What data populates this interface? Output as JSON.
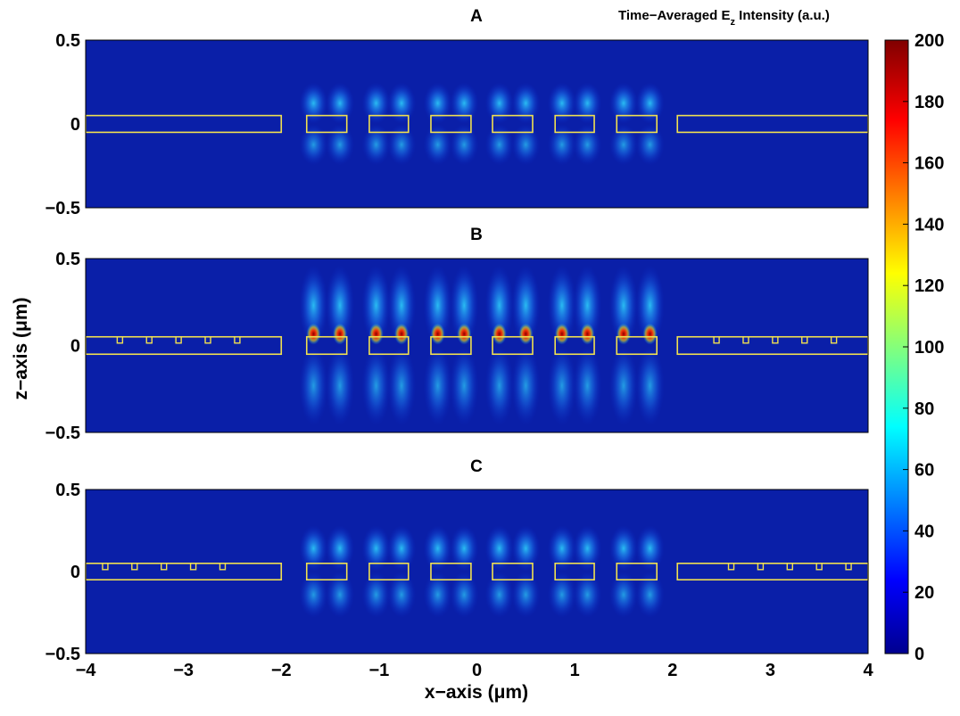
{
  "chart_data": {
    "type": "heatmap",
    "title": {
      "main": "Time−Averaged E",
      "sub": "z",
      "rest": " Intensity (a.u.)"
    },
    "xlabel": "x−axis (μm)",
    "ylabel": "z−axis (μm)",
    "xlim": [
      -4,
      4
    ],
    "ylim": [
      -0.5,
      0.5
    ],
    "x_ticks": [
      -4,
      -3,
      -2,
      -1,
      0,
      1,
      2,
      3,
      4
    ],
    "x_tick_labels": [
      "−4",
      "−3",
      "−2",
      "−1",
      "0",
      "1",
      "2",
      "3",
      "4"
    ],
    "y_tick_labels": [
      "0.5",
      "0",
      "−0.5"
    ],
    "colorbar": {
      "min": 0,
      "max": 200,
      "ticks": [
        0,
        20,
        40,
        60,
        80,
        100,
        120,
        140,
        160,
        180,
        200
      ],
      "colormap": "jet"
    },
    "panels": [
      {
        "label": "A",
        "slab_z": [
          -0.05,
          0.05
        ],
        "slabs": [
          [
            -4,
            -2
          ],
          [
            -1.74,
            -1.33
          ],
          [
            -1.1,
            -0.7
          ],
          [
            -0.47,
            -0.06
          ],
          [
            0.16,
            0.57
          ],
          [
            0.8,
            1.2
          ],
          [
            1.43,
            1.84
          ],
          [
            2.05,
            4
          ]
        ],
        "notches": [],
        "peak": 45
      },
      {
        "label": "B",
        "slab_z": [
          -0.05,
          0.05
        ],
        "slabs": [
          [
            -4,
            -2
          ],
          [
            -1.74,
            -1.33
          ],
          [
            -1.1,
            -0.7
          ],
          [
            -0.47,
            -0.06
          ],
          [
            0.16,
            0.57
          ],
          [
            0.8,
            1.2
          ],
          [
            1.43,
            1.84
          ],
          [
            2.05,
            4
          ]
        ],
        "notches": [
          -3.65,
          -3.35,
          -3.05,
          -2.75,
          -2.45,
          2.45,
          2.75,
          3.05,
          3.35,
          3.65
        ],
        "peak": 200
      },
      {
        "label": "C",
        "slab_z": [
          -0.05,
          0.05
        ],
        "slabs": [
          [
            -4,
            -2
          ],
          [
            -1.74,
            -1.33
          ],
          [
            -1.1,
            -0.7
          ],
          [
            -0.47,
            -0.06
          ],
          [
            0.16,
            0.57
          ],
          [
            0.8,
            1.2
          ],
          [
            1.43,
            1.84
          ],
          [
            2.05,
            4
          ]
        ],
        "notches": [
          -3.8,
          -3.5,
          -3.2,
          -2.9,
          -2.6,
          2.6,
          2.9,
          3.2,
          3.5,
          3.8
        ],
        "peak": 70
      }
    ]
  }
}
